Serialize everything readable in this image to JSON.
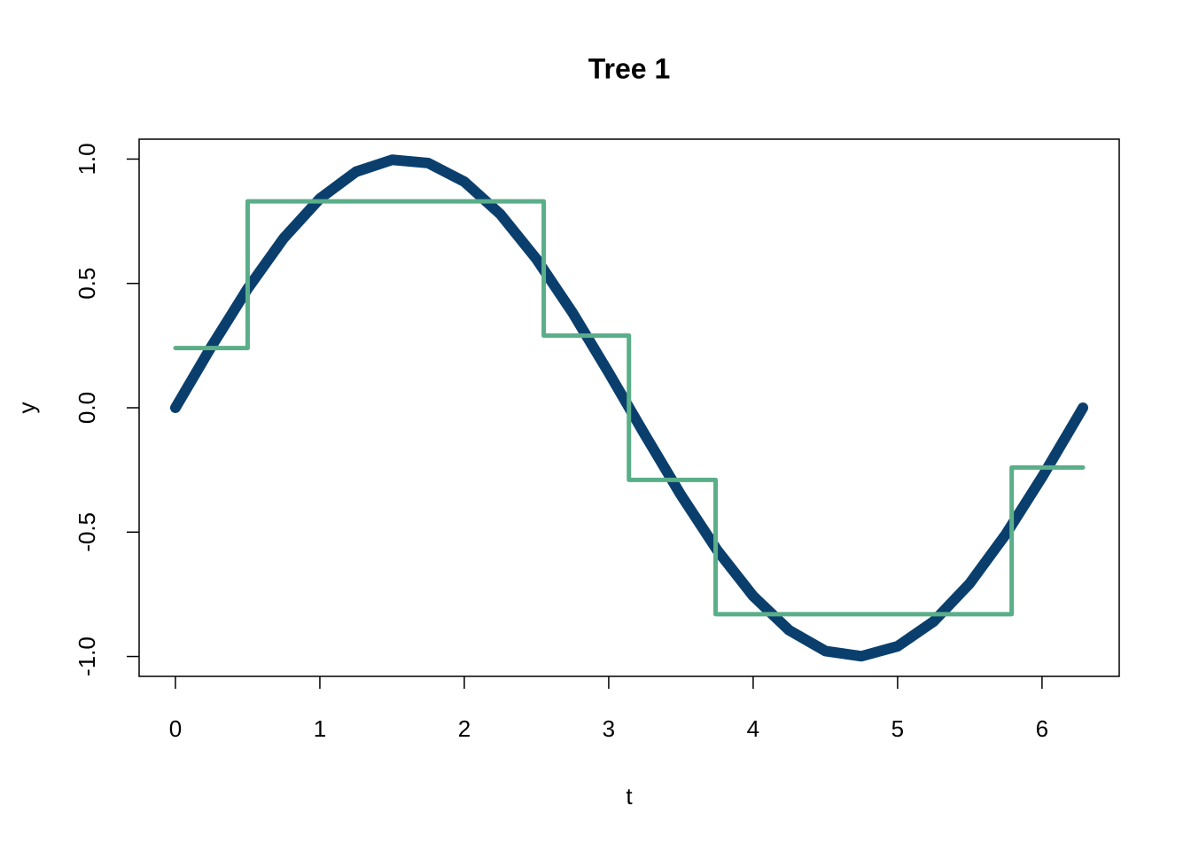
{
  "chart_data": {
    "type": "line",
    "title": "Tree 1",
    "x_label": "t",
    "y_label": "y",
    "xlim": [
      -0.2513,
      6.5345
    ],
    "ylim": [
      -1.08,
      1.08
    ],
    "xticks": [
      0,
      1,
      2,
      3,
      4,
      5,
      6
    ],
    "yticks": [
      {
        "value": -1,
        "label": "-1.0"
      },
      -0.5,
      {
        "value": 0,
        "label": "0.0"
      },
      0.5,
      {
        "value": 1,
        "label": "1.0"
      }
    ],
    "series": [
      {
        "color": "#0a3f6d",
        "width": 12,
        "x": [
          0,
          0.25,
          0.5,
          0.75,
          1,
          1.25,
          1.5,
          1.75,
          2,
          2.25,
          2.5,
          2.75,
          3,
          3.25,
          3.5,
          3.75,
          4,
          4.25,
          4.5,
          4.75,
          5,
          5.25,
          5.5,
          5.75,
          6,
          6.25,
          6.283
        ],
        "values": [
          0,
          0.247,
          0.479,
          0.682,
          0.841,
          0.949,
          0.997,
          0.984,
          0.909,
          0.778,
          0.598,
          0.382,
          0.141,
          -0.108,
          -0.351,
          -0.572,
          -0.757,
          -0.895,
          -0.978,
          -0.999,
          -0.959,
          -0.859,
          -0.706,
          -0.508,
          -0.279,
          -0.033,
          0
        ]
      },
      {
        "color": "#5aae88",
        "width": 5,
        "x": [
          0,
          0.5,
          0.5,
          2.55,
          2.55,
          3.14,
          3.14,
          3.74,
          3.74,
          5.79,
          5.79,
          6.283
        ],
        "values": [
          0.24,
          0.24,
          0.83,
          0.83,
          0.29,
          0.29,
          -0.29,
          -0.29,
          -0.83,
          -0.83,
          -0.24,
          -0.24
        ]
      }
    ]
  }
}
